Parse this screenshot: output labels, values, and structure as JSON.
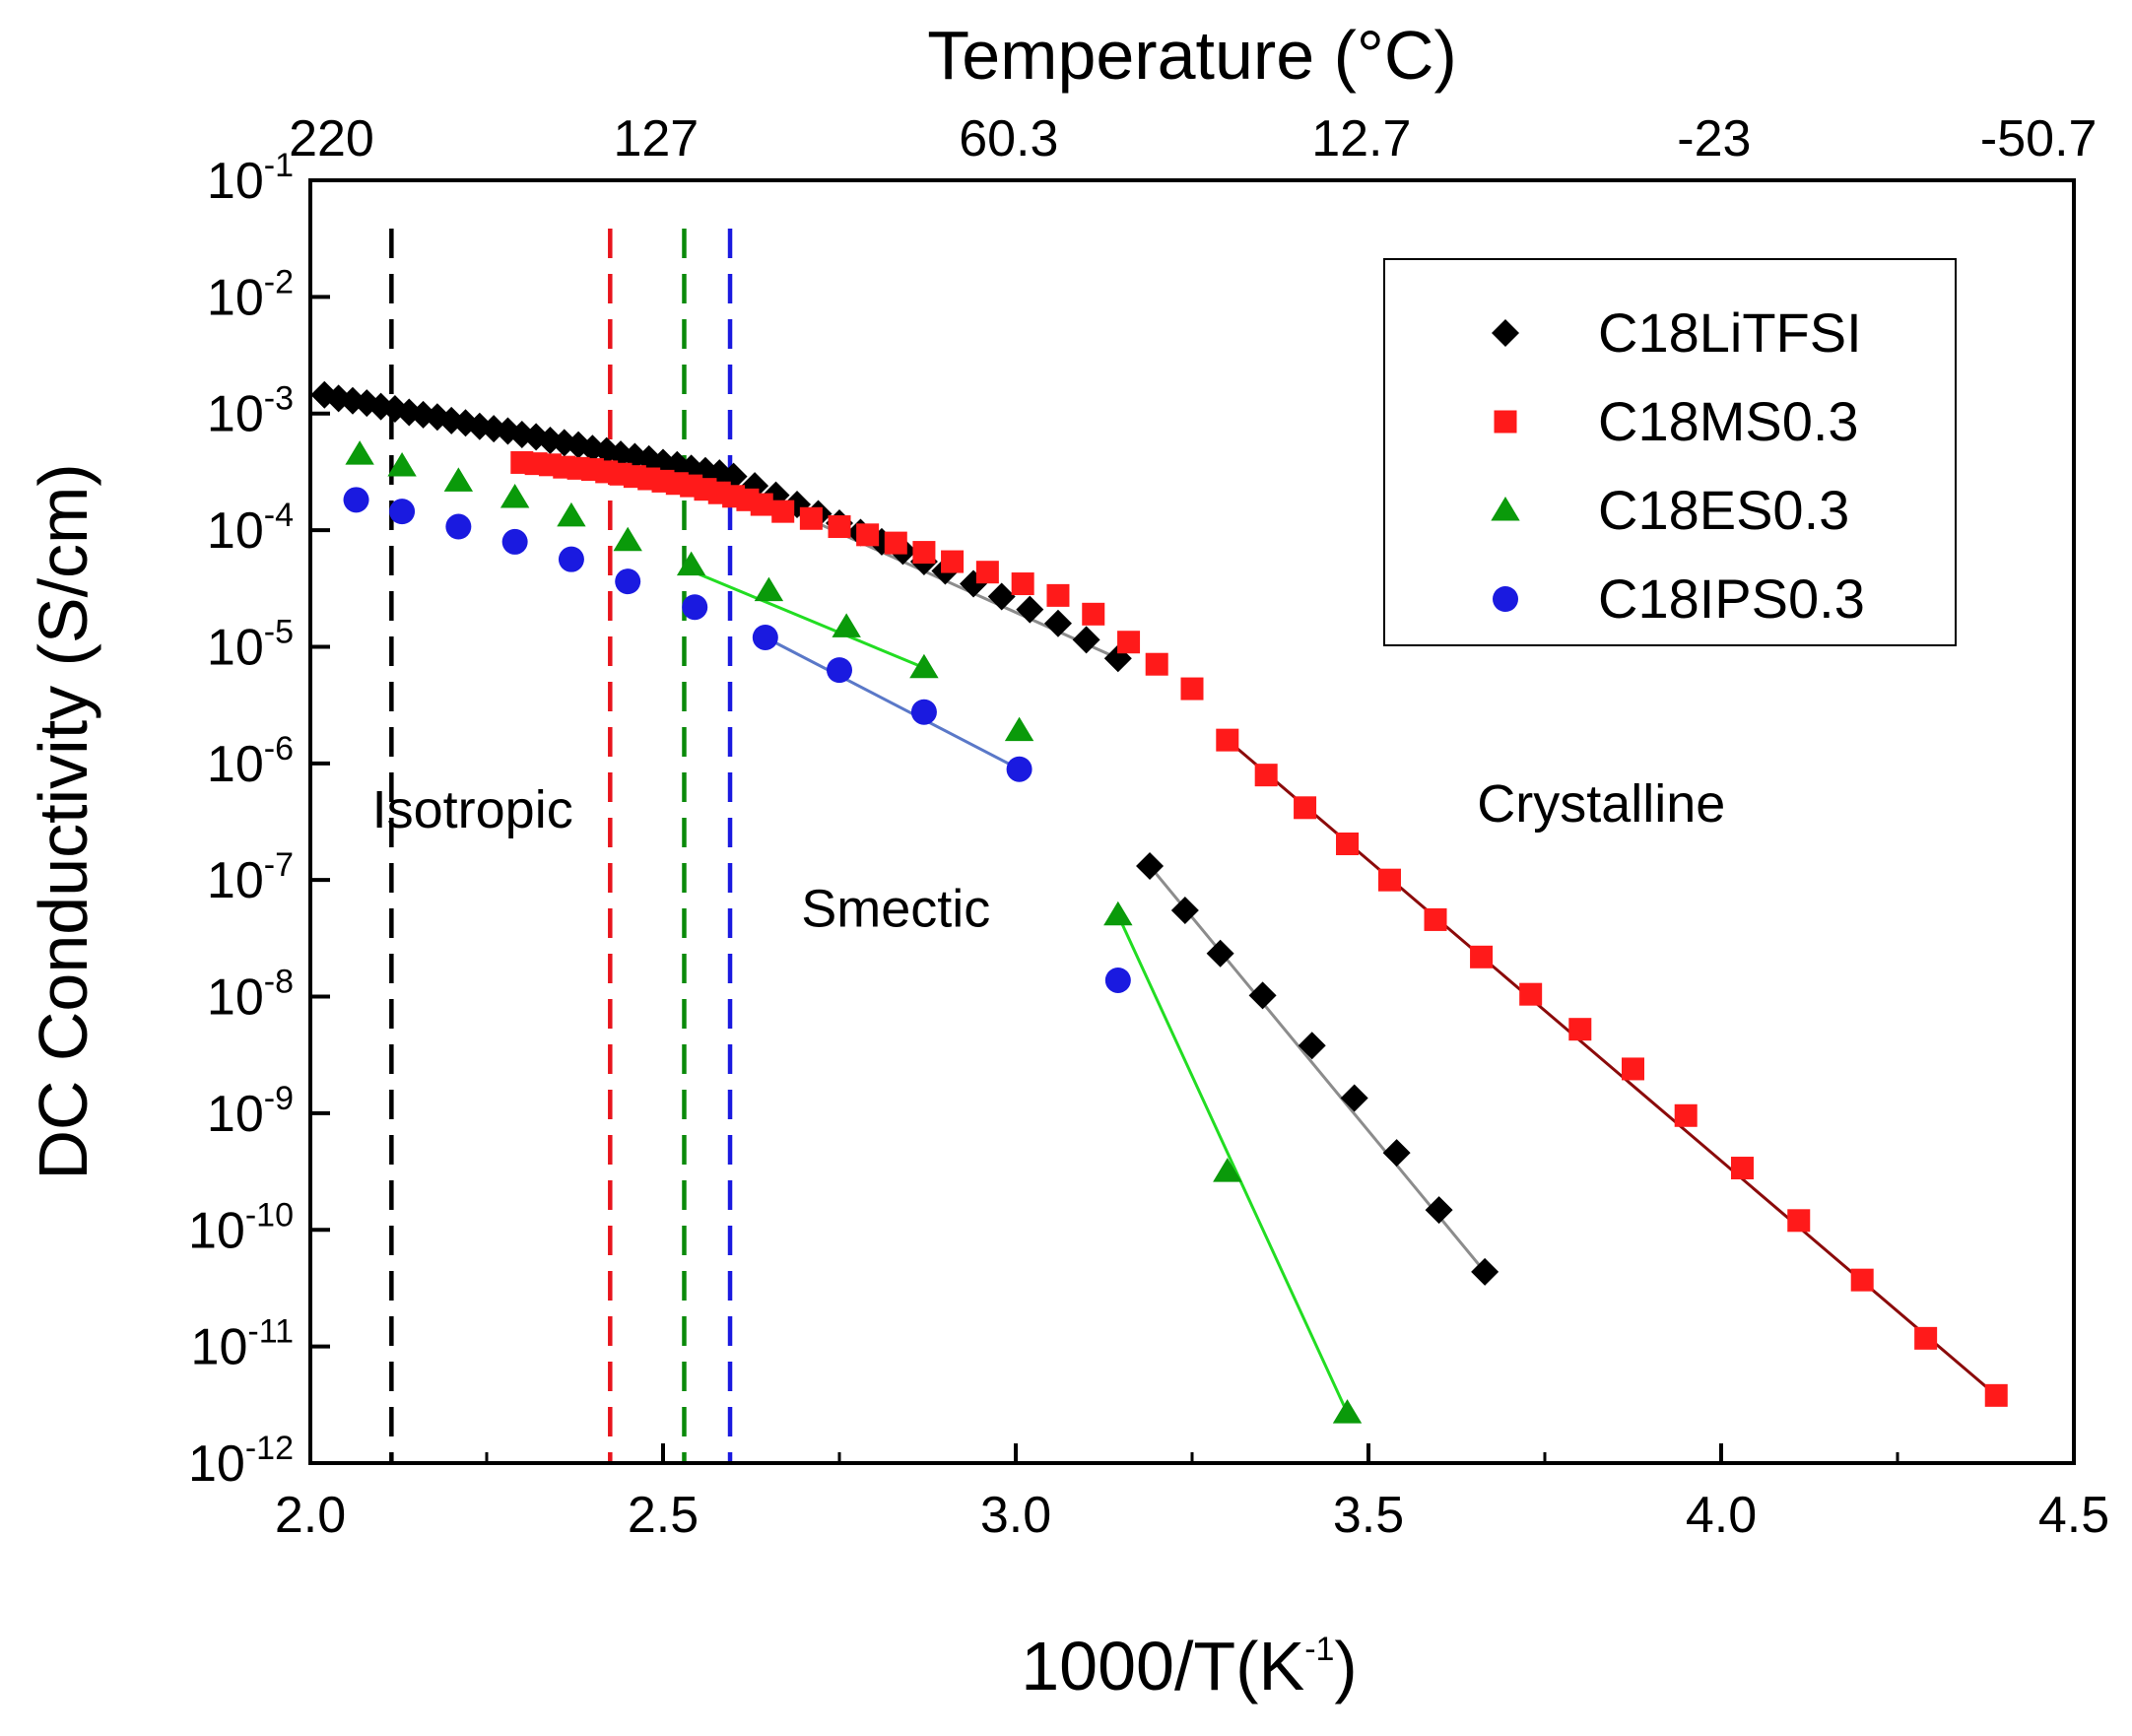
{
  "chart_data": {
    "type": "scatter",
    "title": "",
    "xlabel": "1000/T(K",
    "xlabel_sup": "-1",
    "xlabel_close": ")",
    "ylabel": "DC Conductivity (S/cm)",
    "top_axis_label": "Temperature (°C)",
    "xlim": [
      2.0,
      4.5
    ],
    "ylim_log10": [
      -12,
      -1
    ],
    "x_ticks": [
      "2.0",
      "2.5",
      "3.0",
      "3.5",
      "4.0",
      "4.5"
    ],
    "x_tick_values": [
      2.0,
      2.5,
      3.0,
      3.5,
      4.0,
      4.5
    ],
    "y_ticks": [
      {
        "base": "10",
        "exp": "-1",
        "log": -1
      },
      {
        "base": "10",
        "exp": "-2",
        "log": -2
      },
      {
        "base": "10",
        "exp": "-3",
        "log": -3
      },
      {
        "base": "10",
        "exp": "-4",
        "log": -4
      },
      {
        "base": "10",
        "exp": "-5",
        "log": -5
      },
      {
        "base": "10",
        "exp": "-6",
        "log": -6
      },
      {
        "base": "10",
        "exp": "-7",
        "log": -7
      },
      {
        "base": "10",
        "exp": "-8",
        "log": -8
      },
      {
        "base": "10",
        "exp": "-9",
        "log": -9
      },
      {
        "base": "10",
        "exp": "-10",
        "log": -10
      },
      {
        "base": "10",
        "exp": "-11",
        "log": -11
      },
      {
        "base": "10",
        "exp": "-12",
        "log": -12
      }
    ],
    "top_ticks": [
      {
        "label": "220",
        "x": 2.03
      },
      {
        "label": "127",
        "x": 2.49
      },
      {
        "label": "60.3",
        "x": 2.99
      },
      {
        "label": "12.7",
        "x": 3.49
      },
      {
        "label": "-23",
        "x": 3.99
      },
      {
        "label": "-50.7",
        "x": 4.45
      }
    ],
    "vlines": [
      {
        "x": 2.115,
        "color": "#000000",
        "name": "isotropic-transition-c18litfsi"
      },
      {
        "x": 2.425,
        "color": "#e8141c",
        "name": "transition-c18ms"
      },
      {
        "x": 2.53,
        "color": "#0a8a0a",
        "name": "transition-c18es"
      },
      {
        "x": 2.595,
        "color": "#1a1ae0",
        "name": "transition-c18ips"
      }
    ],
    "annotations": [
      {
        "text": "Isotropic",
        "x": 2.23,
        "y": -6.55
      },
      {
        "text": "Smectic",
        "x": 2.83,
        "y": -7.4
      },
      {
        "text": "Crystalline",
        "x": 3.83,
        "y": -6.5
      }
    ],
    "legend": {
      "position": "top-right"
    },
    "series": [
      {
        "name": "C18LiTFSI",
        "marker": "diamond",
        "color": "#000000",
        "fit_color": "#8c8c8c",
        "x": [
          2.02,
          2.04,
          2.06,
          2.08,
          2.1,
          2.12,
          2.14,
          2.16,
          2.18,
          2.2,
          2.22,
          2.24,
          2.26,
          2.28,
          2.3,
          2.32,
          2.34,
          2.36,
          2.38,
          2.4,
          2.42,
          2.44,
          2.46,
          2.48,
          2.5,
          2.52,
          2.54,
          2.56,
          2.58,
          2.6,
          2.63,
          2.66,
          2.69,
          2.72,
          2.75,
          2.78,
          2.81,
          2.84,
          2.87,
          2.9,
          2.94,
          2.98,
          3.02,
          3.06,
          3.1,
          3.145,
          3.19,
          3.24,
          3.29,
          3.35,
          3.42,
          3.48,
          3.54,
          3.6,
          3.665
        ],
        "y": [
          -2.84,
          -2.87,
          -2.89,
          -2.91,
          -2.94,
          -2.96,
          -2.99,
          -3.01,
          -3.03,
          -3.06,
          -3.08,
          -3.11,
          -3.13,
          -3.15,
          -3.18,
          -3.2,
          -3.23,
          -3.25,
          -3.27,
          -3.3,
          -3.32,
          -3.35,
          -3.37,
          -3.39,
          -3.42,
          -3.44,
          -3.47,
          -3.49,
          -3.51,
          -3.54,
          -3.62,
          -3.7,
          -3.78,
          -3.86,
          -3.94,
          -4.02,
          -4.1,
          -4.18,
          -4.27,
          -4.35,
          -4.46,
          -4.57,
          -4.68,
          -4.8,
          -4.94,
          -5.1,
          -6.88,
          -7.26,
          -7.63,
          -7.99,
          -8.42,
          -8.87,
          -9.34,
          -9.83,
          -10.36
        ],
        "fit_segments": [
          {
            "x": [
              2.02,
              2.55
            ],
            "y": [
              -2.84,
              -3.48
            ]
          },
          {
            "x": [
              2.55,
              3.145
            ],
            "y": [
              -3.48,
              -5.1
            ]
          },
          {
            "x": [
              3.19,
              3.665
            ],
            "y": [
              -6.88,
              -10.36
            ]
          }
        ]
      },
      {
        "name": "C18MS0.3",
        "marker": "square",
        "color": "#ff1a1a",
        "fit_color": "#8b0a0a",
        "x": [
          2.3,
          2.32,
          2.34,
          2.36,
          2.38,
          2.4,
          2.42,
          2.44,
          2.46,
          2.48,
          2.5,
          2.52,
          2.54,
          2.56,
          2.58,
          2.6,
          2.62,
          2.64,
          2.67,
          2.71,
          2.75,
          2.79,
          2.83,
          2.87,
          2.91,
          2.96,
          3.01,
          3.06,
          3.11,
          3.16,
          3.2,
          3.25,
          3.3,
          3.355,
          3.41,
          3.47,
          3.53,
          3.595,
          3.66,
          3.73,
          3.8,
          3.875,
          3.95,
          4.03,
          4.11,
          4.2,
          4.29,
          4.39
        ],
        "y": [
          -3.42,
          -3.43,
          -3.44,
          -3.46,
          -3.47,
          -3.48,
          -3.5,
          -3.52,
          -3.54,
          -3.56,
          -3.58,
          -3.6,
          -3.62,
          -3.65,
          -3.68,
          -3.71,
          -3.74,
          -3.78,
          -3.84,
          -3.9,
          -3.97,
          -4.04,
          -4.11,
          -4.19,
          -4.27,
          -4.36,
          -4.46,
          -4.56,
          -4.72,
          -4.96,
          -5.15,
          -5.36,
          -5.8,
          -6.1,
          -6.38,
          -6.69,
          -7.0,
          -7.34,
          -7.66,
          -7.98,
          -8.28,
          -8.62,
          -9.02,
          -9.47,
          -9.92,
          -10.43,
          -10.93,
          -11.42
        ],
        "fit_segments": [
          {
            "x": [
              2.3,
              2.65
            ],
            "y": [
              -3.42,
              -3.82
            ]
          },
          {
            "x": [
              3.3,
              4.39
            ],
            "y": [
              -5.8,
              -11.42
            ]
          }
        ]
      },
      {
        "name": "C18ES0.3",
        "marker": "triangle",
        "color": "#0a9a0a",
        "fit_color": "#22dd22",
        "x": [
          2.07,
          2.13,
          2.21,
          2.29,
          2.37,
          2.45,
          2.54,
          2.65,
          2.76,
          2.87,
          3.005,
          3.145,
          3.3,
          3.47
        ],
        "y": [
          -3.35,
          -3.45,
          -3.58,
          -3.72,
          -3.88,
          -4.09,
          -4.3,
          -4.52,
          -4.83,
          -5.18,
          -5.72,
          -7.3,
          -9.5,
          -11.57
        ],
        "fit_segments": [
          {
            "x": [
              2.54,
              2.87
            ],
            "y": [
              -4.35,
              -5.18
            ]
          },
          {
            "x": [
              3.145,
              3.47
            ],
            "y": [
              -7.3,
              -11.57
            ]
          }
        ]
      },
      {
        "name": "C18IPS0.3",
        "marker": "circle",
        "color": "#1a1ae0",
        "fit_color": "#5a78c8",
        "x": [
          2.065,
          2.13,
          2.21,
          2.29,
          2.37,
          2.45,
          2.545,
          2.645,
          2.75,
          2.87,
          3.005,
          3.145
        ],
        "y": [
          -3.74,
          -3.84,
          -3.97,
          -4.1,
          -4.25,
          -4.44,
          -4.66,
          -4.92,
          -5.2,
          -5.56,
          -6.05,
          -7.86
        ],
        "fit_segments": [
          {
            "x": [
              2.645,
              3.005
            ],
            "y": [
              -4.92,
              -6.05
            ]
          }
        ]
      }
    ]
  }
}
